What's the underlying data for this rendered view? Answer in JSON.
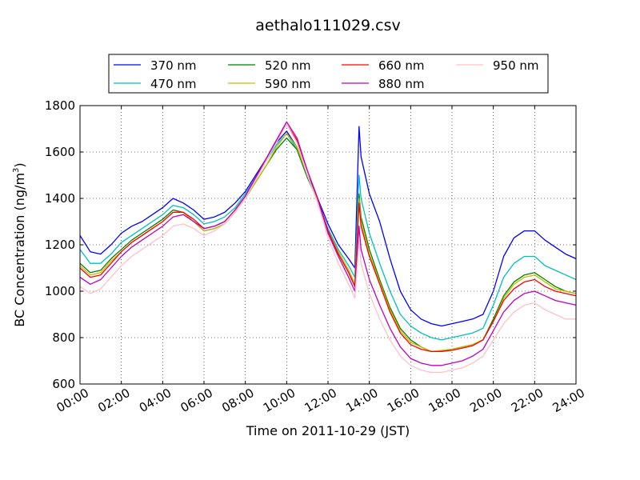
{
  "chart_data": {
    "type": "line",
    "title": "aethalo111029.csv",
    "xlabel": "Time on 2011-10-29 (JST)",
    "ylabel": "BC Concentration (ng/m",
    "ylabel_sup": "3",
    "ylabel_end": ")",
    "xlim": [
      0,
      24
    ],
    "ylim": [
      600,
      1800
    ],
    "grid": true,
    "legend_position": "top",
    "xticks": [
      0,
      2,
      4,
      6,
      8,
      10,
      12,
      14,
      16,
      18,
      20,
      22,
      24
    ],
    "xtick_labels": [
      "00:00",
      "02:00",
      "04:00",
      "06:00",
      "08:00",
      "10:00",
      "12:00",
      "14:00",
      "16:00",
      "18:00",
      "20:00",
      "22:00",
      "24:00"
    ],
    "yticks": [
      600,
      800,
      1000,
      1200,
      1400,
      1600,
      1800
    ],
    "ytick_labels": [
      "600",
      "800",
      "1000",
      "1200",
      "1400",
      "1600",
      "1800"
    ],
    "x_units": "hours",
    "series": [
      {
        "name": "370 nm",
        "color": "#0000ff",
        "x": [
          0,
          0.5,
          1,
          1.5,
          2,
          2.5,
          3,
          3.5,
          4,
          4.5,
          5,
          5.5,
          6,
          6.5,
          7,
          7.5,
          8,
          8.5,
          9,
          9.5,
          10,
          10.5,
          11,
          11.5,
          12,
          12.5,
          13,
          13.3,
          13.5,
          13.6,
          14,
          14.5,
          15,
          15.5,
          16,
          16.5,
          17,
          17.5,
          18,
          18.5,
          19,
          19.5,
          20,
          20.5,
          21,
          21.5,
          22,
          22.5,
          23,
          23.5,
          24
        ],
        "y": [
          1240,
          1170,
          1160,
          1200,
          1250,
          1280,
          1300,
          1330,
          1360,
          1400,
          1380,
          1350,
          1310,
          1320,
          1340,
          1380,
          1430,
          1500,
          1570,
          1640,
          1690,
          1620,
          1500,
          1400,
          1290,
          1200,
          1140,
          1100,
          1710,
          1580,
          1420,
          1300,
          1140,
          1000,
          920,
          880,
          860,
          850,
          860,
          870,
          880,
          900,
          1000,
          1150,
          1230,
          1260,
          1260,
          1220,
          1190,
          1160,
          1140
        ]
      },
      {
        "name": "470 nm",
        "color": "#00bfbf",
        "x": [
          0,
          0.5,
          1,
          1.5,
          2,
          2.5,
          3,
          3.5,
          4,
          4.5,
          5,
          5.5,
          6,
          6.5,
          7,
          7.5,
          8,
          8.5,
          9,
          9.5,
          10,
          10.5,
          11,
          11.5,
          12,
          12.5,
          13,
          13.3,
          13.5,
          13.6,
          14,
          14.5,
          15,
          15.5,
          16,
          16.5,
          17,
          17.5,
          18,
          18.5,
          19,
          19.5,
          20,
          20.5,
          21,
          21.5,
          22,
          22.5,
          23,
          23.5,
          24
        ],
        "y": [
          1180,
          1120,
          1120,
          1160,
          1210,
          1240,
          1270,
          1300,
          1330,
          1370,
          1360,
          1330,
          1290,
          1300,
          1320,
          1360,
          1420,
          1490,
          1560,
          1630,
          1680,
          1610,
          1490,
          1390,
          1270,
          1180,
          1110,
          1060,
          1500,
          1400,
          1250,
          1120,
          1000,
          900,
          850,
          820,
          800,
          790,
          800,
          810,
          820,
          840,
          940,
          1060,
          1120,
          1150,
          1150,
          1110,
          1090,
          1070,
          1050
        ]
      },
      {
        "name": "520 nm",
        "color": "#008000",
        "x": [
          0,
          0.5,
          1,
          1.5,
          2,
          2.5,
          3,
          3.5,
          4,
          4.5,
          5,
          5.5,
          6,
          6.5,
          7,
          7.5,
          8,
          8.5,
          9,
          9.5,
          10,
          10.5,
          11,
          11.5,
          12,
          12.5,
          13,
          13.3,
          13.5,
          13.6,
          14,
          14.5,
          15,
          15.5,
          16,
          16.5,
          17,
          17.5,
          18,
          18.5,
          19,
          19.5,
          20,
          20.5,
          21,
          21.5,
          22,
          22.5,
          23,
          23.5,
          24
        ],
        "y": [
          1120,
          1080,
          1090,
          1140,
          1180,
          1220,
          1250,
          1280,
          1310,
          1350,
          1340,
          1300,
          1260,
          1270,
          1290,
          1340,
          1400,
          1470,
          1540,
          1610,
          1660,
          1610,
          1490,
          1390,
          1260,
          1170,
          1090,
          1030,
          1420,
          1320,
          1180,
          1050,
          930,
          840,
          790,
          760,
          740,
          740,
          750,
          760,
          770,
          790,
          880,
          980,
          1040,
          1070,
          1080,
          1050,
          1020,
          1000,
          990
        ]
      },
      {
        "name": "590 nm",
        "color": "#bfbf00",
        "x": [
          0,
          0.5,
          1,
          1.5,
          2,
          2.5,
          3,
          3.5,
          4,
          4.5,
          5,
          5.5,
          6,
          6.5,
          7,
          7.5,
          8,
          8.5,
          9,
          9.5,
          10,
          10.5,
          11,
          11.5,
          12,
          12.5,
          13,
          13.3,
          13.5,
          13.6,
          14,
          14.5,
          15,
          15.5,
          16,
          16.5,
          17,
          17.5,
          18,
          18.5,
          19,
          19.5,
          20,
          20.5,
          21,
          21.5,
          22,
          22.5,
          23,
          23.5,
          24
        ],
        "y": [
          1110,
          1070,
          1080,
          1130,
          1170,
          1210,
          1240,
          1270,
          1300,
          1340,
          1340,
          1300,
          1260,
          1270,
          1290,
          1340,
          1400,
          1470,
          1540,
          1620,
          1680,
          1620,
          1500,
          1390,
          1260,
          1170,
          1090,
          1030,
          1400,
          1300,
          1160,
          1040,
          920,
          830,
          780,
          760,
          740,
          745,
          750,
          760,
          770,
          790,
          870,
          970,
          1030,
          1060,
          1070,
          1040,
          1010,
          1000,
          990
        ]
      },
      {
        "name": "660 nm",
        "color": "#ff0000",
        "x": [
          0,
          0.5,
          1,
          1.5,
          2,
          2.5,
          3,
          3.5,
          4,
          4.5,
          5,
          5.5,
          6,
          6.5,
          7,
          7.5,
          8,
          8.5,
          9,
          9.5,
          10,
          10.5,
          11,
          11.5,
          12,
          12.5,
          13,
          13.3,
          13.5,
          13.6,
          14,
          14.5,
          15,
          15.5,
          16,
          16.5,
          17,
          17.5,
          18,
          18.5,
          19,
          19.5,
          20,
          20.5,
          21,
          21.5,
          22,
          22.5,
          23,
          23.5,
          24
        ],
        "y": [
          1100,
          1060,
          1070,
          1120,
          1170,
          1210,
          1240,
          1270,
          1300,
          1340,
          1340,
          1310,
          1270,
          1280,
          1300,
          1350,
          1410,
          1490,
          1570,
          1650,
          1720,
          1650,
          1520,
          1400,
          1260,
          1160,
          1080,
          1020,
          1380,
          1280,
          1150,
          1030,
          910,
          820,
          770,
          750,
          740,
          740,
          745,
          755,
          765,
          790,
          870,
          960,
          1010,
          1040,
          1050,
          1020,
          1000,
          990,
          980
        ]
      },
      {
        "name": "880 nm",
        "color": "#bf00bf",
        "x": [
          0,
          0.5,
          1,
          1.5,
          2,
          2.5,
          3,
          3.5,
          4,
          4.5,
          5,
          5.5,
          6,
          6.5,
          7,
          7.5,
          8,
          8.5,
          9,
          9.5,
          10,
          10.5,
          11,
          11.5,
          12,
          12.5,
          13,
          13.3,
          13.5,
          13.6,
          14,
          14.5,
          15,
          15.5,
          16,
          16.5,
          17,
          17.5,
          18,
          18.5,
          19,
          19.5,
          20,
          20.5,
          21,
          21.5,
          22,
          22.5,
          23,
          23.5,
          24
        ],
        "y": [
          1060,
          1030,
          1050,
          1100,
          1150,
          1190,
          1220,
          1250,
          1280,
          1320,
          1330,
          1300,
          1270,
          1280,
          1300,
          1350,
          1410,
          1490,
          1570,
          1650,
          1730,
          1660,
          1520,
          1400,
          1250,
          1150,
          1060,
          1000,
          1280,
          1180,
          1050,
          940,
          840,
          760,
          710,
          690,
          680,
          680,
          690,
          700,
          720,
          750,
          830,
          910,
          960,
          990,
          1000,
          980,
          960,
          950,
          940
        ]
      },
      {
        "name": "950 nm",
        "color": "#ffc0cb",
        "x": [
          0,
          0.5,
          1,
          1.5,
          2,
          2.5,
          3,
          3.5,
          4,
          4.5,
          5,
          5.5,
          6,
          6.5,
          7,
          7.5,
          8,
          8.5,
          9,
          9.5,
          10,
          10.5,
          11,
          11.5,
          12,
          12.5,
          13,
          13.3,
          13.5,
          13.6,
          14,
          14.5,
          15,
          15.5,
          16,
          16.5,
          17,
          17.5,
          18,
          18.5,
          19,
          19.5,
          20,
          20.5,
          21,
          21.5,
          22,
          22.5,
          23,
          23.5,
          24
        ],
        "y": [
          1020,
          990,
          1010,
          1060,
          1110,
          1150,
          1180,
          1210,
          1240,
          1280,
          1290,
          1270,
          1240,
          1260,
          1290,
          1340,
          1400,
          1480,
          1560,
          1640,
          1720,
          1640,
          1500,
          1380,
          1230,
          1120,
          1030,
          970,
          1220,
          1120,
          990,
          880,
          790,
          720,
          680,
          660,
          650,
          650,
          660,
          670,
          690,
          720,
          790,
          860,
          910,
          940,
          950,
          920,
          900,
          880,
          880
        ]
      }
    ]
  }
}
